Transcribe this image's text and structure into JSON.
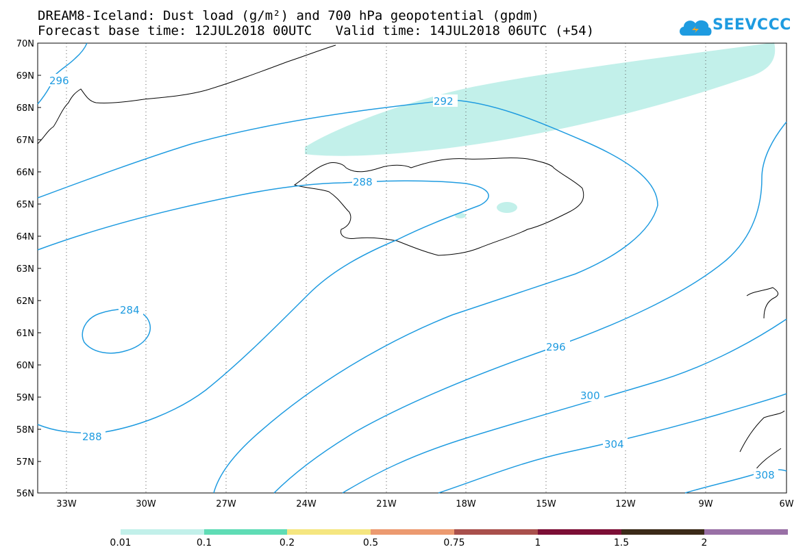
{
  "header": {
    "title_line1": "DREAM8-Iceland: Dust load (g/m²) and 700 hPa geopotential (gpdm)",
    "title_line2": "Forecast base time: 12JUL2018 00UTC   Valid time: 14JUL2018 06UTC (+54)"
  },
  "logo": {
    "text": "SEEVCCC",
    "color": "#1e9be0"
  },
  "map": {
    "lat_labels": [
      "70N",
      "69N",
      "68N",
      "67N",
      "66N",
      "65N",
      "64N",
      "63N",
      "62N",
      "61N",
      "60N",
      "59N",
      "58N",
      "57N",
      "56N"
    ],
    "lon_labels": [
      "33W",
      "30W",
      "27W",
      "24W",
      "21W",
      "18W",
      "15W",
      "12W",
      "9W",
      "6W"
    ],
    "contour_color": "#1e9be0",
    "coast_color": "#000000",
    "contour_labels": [
      "296",
      "292",
      "288",
      "284",
      "288",
      "296",
      "300",
      "304",
      "308"
    ]
  },
  "colorbar": {
    "colors": [
      "#c2f0ea",
      "#5fdcb5",
      "#f5e680",
      "#ec9a70",
      "#a9504c",
      "#7c0f36",
      "#3b2a18",
      "#9970a6"
    ],
    "labels": [
      "0.01",
      "0.1",
      "0.2",
      "0.5",
      "0.75",
      "1",
      "1.5",
      "2"
    ]
  }
}
